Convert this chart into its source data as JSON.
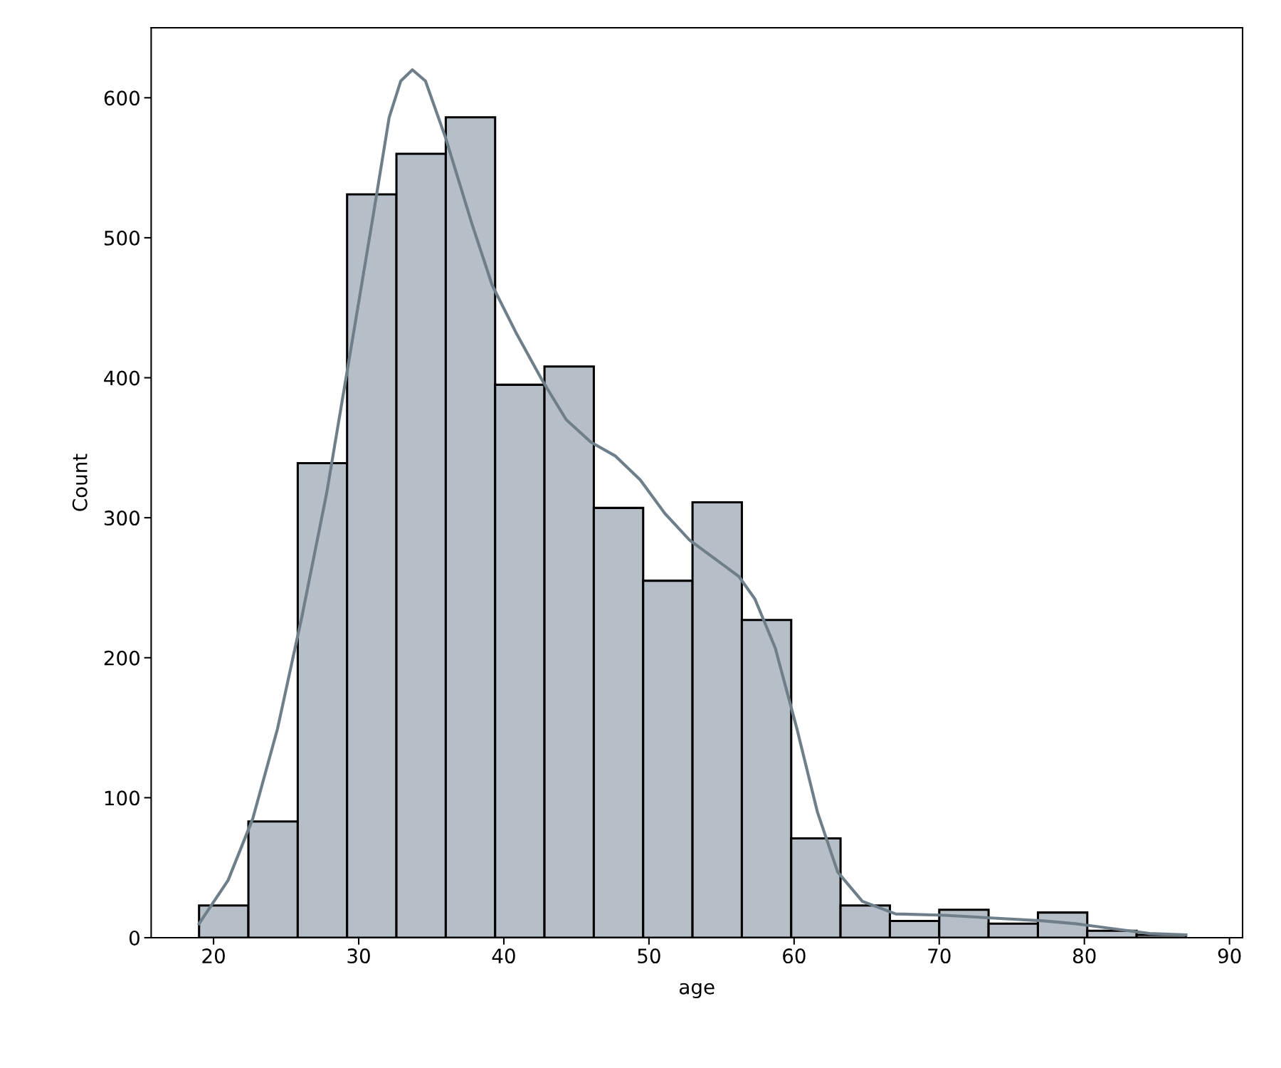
{
  "chart_data": {
    "type": "histogram",
    "xlabel": "age",
    "ylabel": "Count",
    "bins": [
      19,
      22.4,
      25.8,
      29.2,
      32.6,
      36,
      39.4,
      42.8,
      46.2,
      49.6,
      53,
      56.4,
      59.8,
      63.2,
      66.6,
      70,
      73.4,
      76.8,
      80.2,
      83.6,
      87
    ],
    "series": [
      {
        "color": "#b6bfc7",
        "values": [
          23,
          83,
          339,
          531,
          560,
          586,
          395,
          408,
          307,
          255,
          311,
          227,
          71,
          23,
          12,
          20,
          10,
          18,
          5,
          2
        ]
      },
      {
        "type": "line",
        "color": "#6f7f8a",
        "x": [
          19,
          21,
          22.7,
          24.4,
          26.1,
          27.8,
          29.5,
          31,
          32.1,
          32.9,
          33.7,
          34.6,
          36,
          37.8,
          39.2,
          40.9,
          42.6,
          44.3,
          46,
          47.7,
          49.4,
          51.1,
          52.8,
          54.5,
          56.2,
          57.3,
          58.7,
          60.2,
          61.6,
          63,
          64.7,
          67,
          70.4,
          73.8,
          77.2,
          79.4,
          82.3,
          84.5,
          87
        ],
        "values": [
          10,
          41,
          85,
          149,
          230,
          318,
          423,
          516,
          586,
          612,
          620,
          612,
          571,
          510,
          466,
          431,
          399,
          370,
          354,
          344,
          327,
          303,
          284,
          271,
          258,
          242,
          207,
          149,
          90,
          47,
          26,
          17,
          16,
          14,
          12,
          10,
          6,
          3,
          2
        ]
      }
    ],
    "xlim": [
      15.7,
      90.9
    ],
    "ylim": [
      0,
      650
    ],
    "xticks": [
      20,
      30,
      40,
      50,
      60,
      70,
      80,
      90
    ],
    "yticks": [
      0,
      100,
      200,
      300,
      400,
      500,
      600
    ],
    "grid": false
  }
}
